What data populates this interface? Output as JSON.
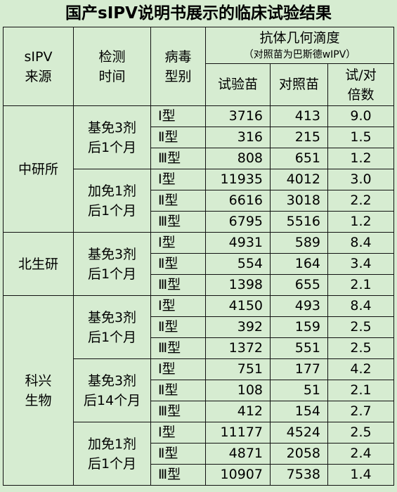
{
  "title": "国产sIPV说明书展示的临床试验结果",
  "headers": {
    "source": "sIPV\n来源",
    "time": "检测\n时间",
    "type": "病毒\n型别",
    "gmt": "抗体几何滴度",
    "gmt_note": "（对照苗为巴斯德wIPV）",
    "test": "试验苗",
    "control": "对照苗",
    "ratio": "试/对\n倍数"
  },
  "sources": [
    {
      "name": "中研所",
      "groups": [
        {
          "time": "基免3剂\n后1个月",
          "rows": [
            {
              "type": "Ⅰ型",
              "test": "3716",
              "control": "413",
              "ratio": "9.0"
            },
            {
              "type": "Ⅱ型",
              "test": "316",
              "control": "215",
              "ratio": "1.5"
            },
            {
              "type": "Ⅲ型",
              "test": "808",
              "control": "651",
              "ratio": "1.2"
            }
          ]
        },
        {
          "time": "加免1剂\n后1个月",
          "rows": [
            {
              "type": "Ⅰ型",
              "test": "11935",
              "control": "4012",
              "ratio": "3.0"
            },
            {
              "type": "Ⅱ型",
              "test": "6616",
              "control": "3018",
              "ratio": "2.2"
            },
            {
              "type": "Ⅲ型",
              "test": "6795",
              "control": "5516",
              "ratio": "1.2"
            }
          ]
        }
      ]
    },
    {
      "name": "北生研",
      "groups": [
        {
          "time": "基免3剂\n后1个月",
          "rows": [
            {
              "type": "Ⅰ型",
              "test": "4931",
              "control": "589",
              "ratio": "8.4"
            },
            {
              "type": "Ⅱ型",
              "test": "554",
              "control": "164",
              "ratio": "3.4"
            },
            {
              "type": "Ⅲ型",
              "test": "1398",
              "control": "655",
              "ratio": "2.1"
            }
          ]
        }
      ]
    },
    {
      "name": "科兴\n生物",
      "groups": [
        {
          "time": "基免3剂\n后1个月",
          "rows": [
            {
              "type": "Ⅰ型",
              "test": "4150",
              "control": "493",
              "ratio": "8.4"
            },
            {
              "type": "Ⅱ型",
              "test": "392",
              "control": "159",
              "ratio": "2.5"
            },
            {
              "type": "Ⅲ型",
              "test": "1372",
              "control": "551",
              "ratio": "2.5"
            }
          ]
        },
        {
          "time": "基免3剂\n后14个月",
          "rows": [
            {
              "type": "Ⅰ型",
              "test": "751",
              "control": "177",
              "ratio": "4.2"
            },
            {
              "type": "Ⅱ型",
              "test": "108",
              "control": "51",
              "ratio": "2.1"
            },
            {
              "type": "Ⅲ型",
              "test": "412",
              "control": "154",
              "ratio": "2.7"
            }
          ]
        },
        {
          "time": "加免1剂\n后1个月",
          "rows": [
            {
              "type": "Ⅰ型",
              "test": "11177",
              "control": "4524",
              "ratio": "2.5"
            },
            {
              "type": "Ⅱ型",
              "test": "4871",
              "control": "2058",
              "ratio": "2.4"
            },
            {
              "type": "Ⅲ型",
              "test": "10907",
              "control": "7538",
              "ratio": "1.4"
            }
          ]
        }
      ]
    }
  ],
  "chart_data": {
    "type": "table",
    "title": "国产sIPV说明书展示的临床试验结果",
    "columns": [
      "sIPV来源",
      "检测时间",
      "病毒型别",
      "试验苗",
      "对照苗",
      "试/对倍数"
    ],
    "rows": [
      [
        "中研所",
        "基免3剂后1个月",
        "Ⅰ型",
        3716,
        413,
        9.0
      ],
      [
        "中研所",
        "基免3剂后1个月",
        "Ⅱ型",
        316,
        215,
        1.5
      ],
      [
        "中研所",
        "基免3剂后1个月",
        "Ⅲ型",
        808,
        651,
        1.2
      ],
      [
        "中研所",
        "加免1剂后1个月",
        "Ⅰ型",
        11935,
        4012,
        3.0
      ],
      [
        "中研所",
        "加免1剂后1个月",
        "Ⅱ型",
        6616,
        3018,
        2.2
      ],
      [
        "中研所",
        "加免1剂后1个月",
        "Ⅲ型",
        6795,
        5516,
        1.2
      ],
      [
        "北生研",
        "基免3剂后1个月",
        "Ⅰ型",
        4931,
        589,
        8.4
      ],
      [
        "北生研",
        "基免3剂后1个月",
        "Ⅱ型",
        554,
        164,
        3.4
      ],
      [
        "北生研",
        "基免3剂后1个月",
        "Ⅲ型",
        1398,
        655,
        2.1
      ],
      [
        "科兴生物",
        "基免3剂后1个月",
        "Ⅰ型",
        4150,
        493,
        8.4
      ],
      [
        "科兴生物",
        "基免3剂后1个月",
        "Ⅱ型",
        392,
        159,
        2.5
      ],
      [
        "科兴生物",
        "基免3剂后1个月",
        "Ⅲ型",
        1372,
        551,
        2.5
      ],
      [
        "科兴生物",
        "基免3剂后14个月",
        "Ⅰ型",
        751,
        177,
        4.2
      ],
      [
        "科兴生物",
        "基免3剂后14个月",
        "Ⅱ型",
        108,
        51,
        2.1
      ],
      [
        "科兴生物",
        "基免3剂后14个月",
        "Ⅲ型",
        412,
        154,
        2.7
      ],
      [
        "科兴生物",
        "加免1剂后1个月",
        "Ⅰ型",
        11177,
        4524,
        2.5
      ],
      [
        "科兴生物",
        "加免1剂后1个月",
        "Ⅱ型",
        4871,
        2058,
        2.4
      ],
      [
        "科兴生物",
        "加免1剂后1个月",
        "Ⅲ型",
        10907,
        7538,
        1.4
      ]
    ]
  }
}
